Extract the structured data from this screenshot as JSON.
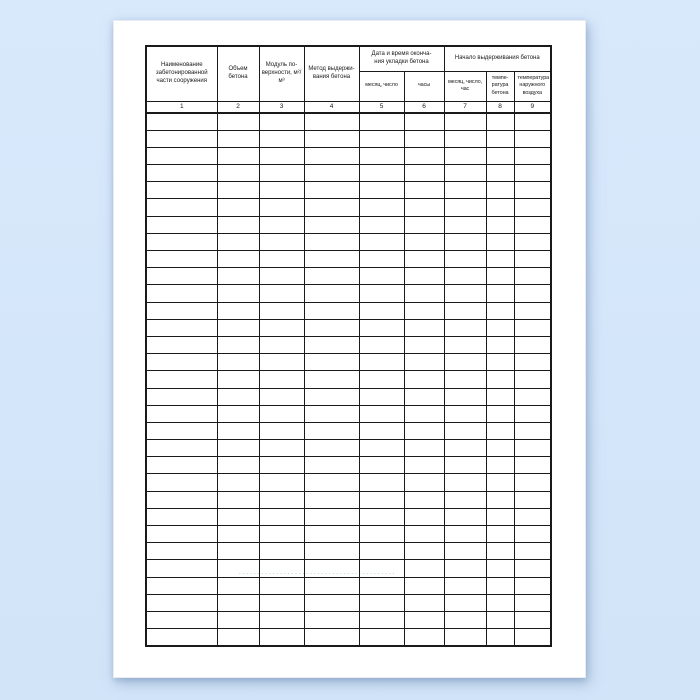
{
  "colors": {
    "background": "#d6e8fa",
    "paper": "#ffffff",
    "grid": "#1a1a1a",
    "text": "#1a1a1a",
    "watermark_green": "#2f8a4d"
  },
  "table": {
    "columns": [
      {
        "num": "1",
        "label": "Наименование забетонированной части сооружения"
      },
      {
        "num": "2",
        "label": "Объем бетона"
      },
      {
        "num": "3",
        "label": "Модуль по-верхности, м²/м³"
      },
      {
        "num": "4",
        "label": "Метод выдержи-вания бетона"
      },
      {
        "num": "5",
        "label": "месяц, число"
      },
      {
        "num": "6",
        "label": "часы"
      },
      {
        "num": "7",
        "label": "месяц, число, час"
      },
      {
        "num": "8",
        "label": "темпе-ратура бетона"
      },
      {
        "num": "9",
        "label": "температура наружного воздуха"
      }
    ],
    "groups": [
      {
        "label": "Дата и время оконча-ния укладки бетона"
      },
      {
        "label": "Начало выдерживания бетона"
      }
    ],
    "body_row_count": 31,
    "body_col_count": 9
  },
  "watermark": {
    "text": "- - -  - - - - -  - -  - - - -  - - -  - - - - -  - - - -  - -  - - - - -  - - -  - - - -  - -"
  }
}
